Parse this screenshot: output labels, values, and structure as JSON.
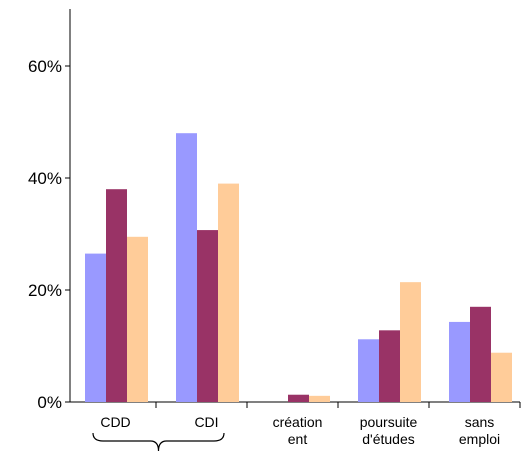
{
  "chart_data": {
    "type": "bar",
    "categories": [
      {
        "lines": [
          "CDD"
        ]
      },
      {
        "lines": [
          "CDI"
        ]
      },
      {
        "lines": [
          "création",
          "ent"
        ]
      },
      {
        "lines": [
          "poursuite",
          "d'études"
        ]
      },
      {
        "lines": [
          "sans",
          "emploi"
        ]
      }
    ],
    "series": [
      {
        "color": "#9999ff",
        "values": [
          26.5,
          48.0,
          0,
          11.2,
          14.3
        ]
      },
      {
        "color": "#993366",
        "values": [
          38.0,
          30.7,
          1.3,
          12.8,
          17.0
        ]
      },
      {
        "color": "#ffcc99",
        "values": [
          29.5,
          39.0,
          1.1,
          21.4,
          8.8
        ]
      }
    ],
    "ylim": [
      0,
      70
    ],
    "yticks": [
      0,
      20,
      40,
      60
    ],
    "ytick_labels": [
      "0%",
      "20%",
      "40%",
      "60%"
    ],
    "grid": false,
    "annotations": [
      {
        "type": "brace",
        "spans_categories": [
          0,
          1
        ]
      }
    ]
  }
}
